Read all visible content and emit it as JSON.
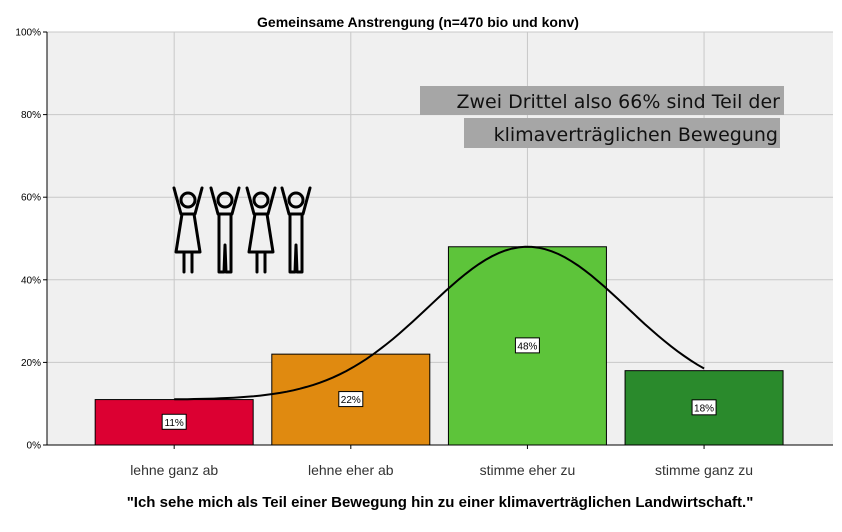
{
  "chart_data": {
    "type": "bar",
    "title": "Gemeinsame Anstrengung (n=470 bio und konv)",
    "xlabel": "\"Ich sehe mich als Teil einer Bewegung hin zu einer klimaverträglichen Landwirtschaft.\"",
    "ylabel": "",
    "categories": [
      "lehne ganz ab",
      "lehne eher ab",
      "stimme eher zu",
      "stimme ganz zu"
    ],
    "values": [
      11,
      22,
      48,
      18
    ],
    "data_labels": [
      "11%",
      "22%",
      "48%",
      "18%"
    ],
    "colors": [
      "#dc0032",
      "#e08a10",
      "#5dc43a",
      "#2a8a2c"
    ],
    "ylim": [
      0,
      100
    ],
    "yticks": [
      0,
      20,
      40,
      60,
      80,
      100
    ],
    "ytick_labels": [
      "0%",
      "20%",
      "40%",
      "60%",
      "80%",
      "100%"
    ],
    "grid": true,
    "overlay": "normal-curve",
    "annotation": {
      "lines": [
        "Zwei Drittel also 66% sind Teil der",
        "klimaverträglichen Bewegung"
      ],
      "background": "#a6a6a6"
    },
    "icon": "group-of-people-cheering-icon",
    "plot_background": "#f0f0f0"
  }
}
